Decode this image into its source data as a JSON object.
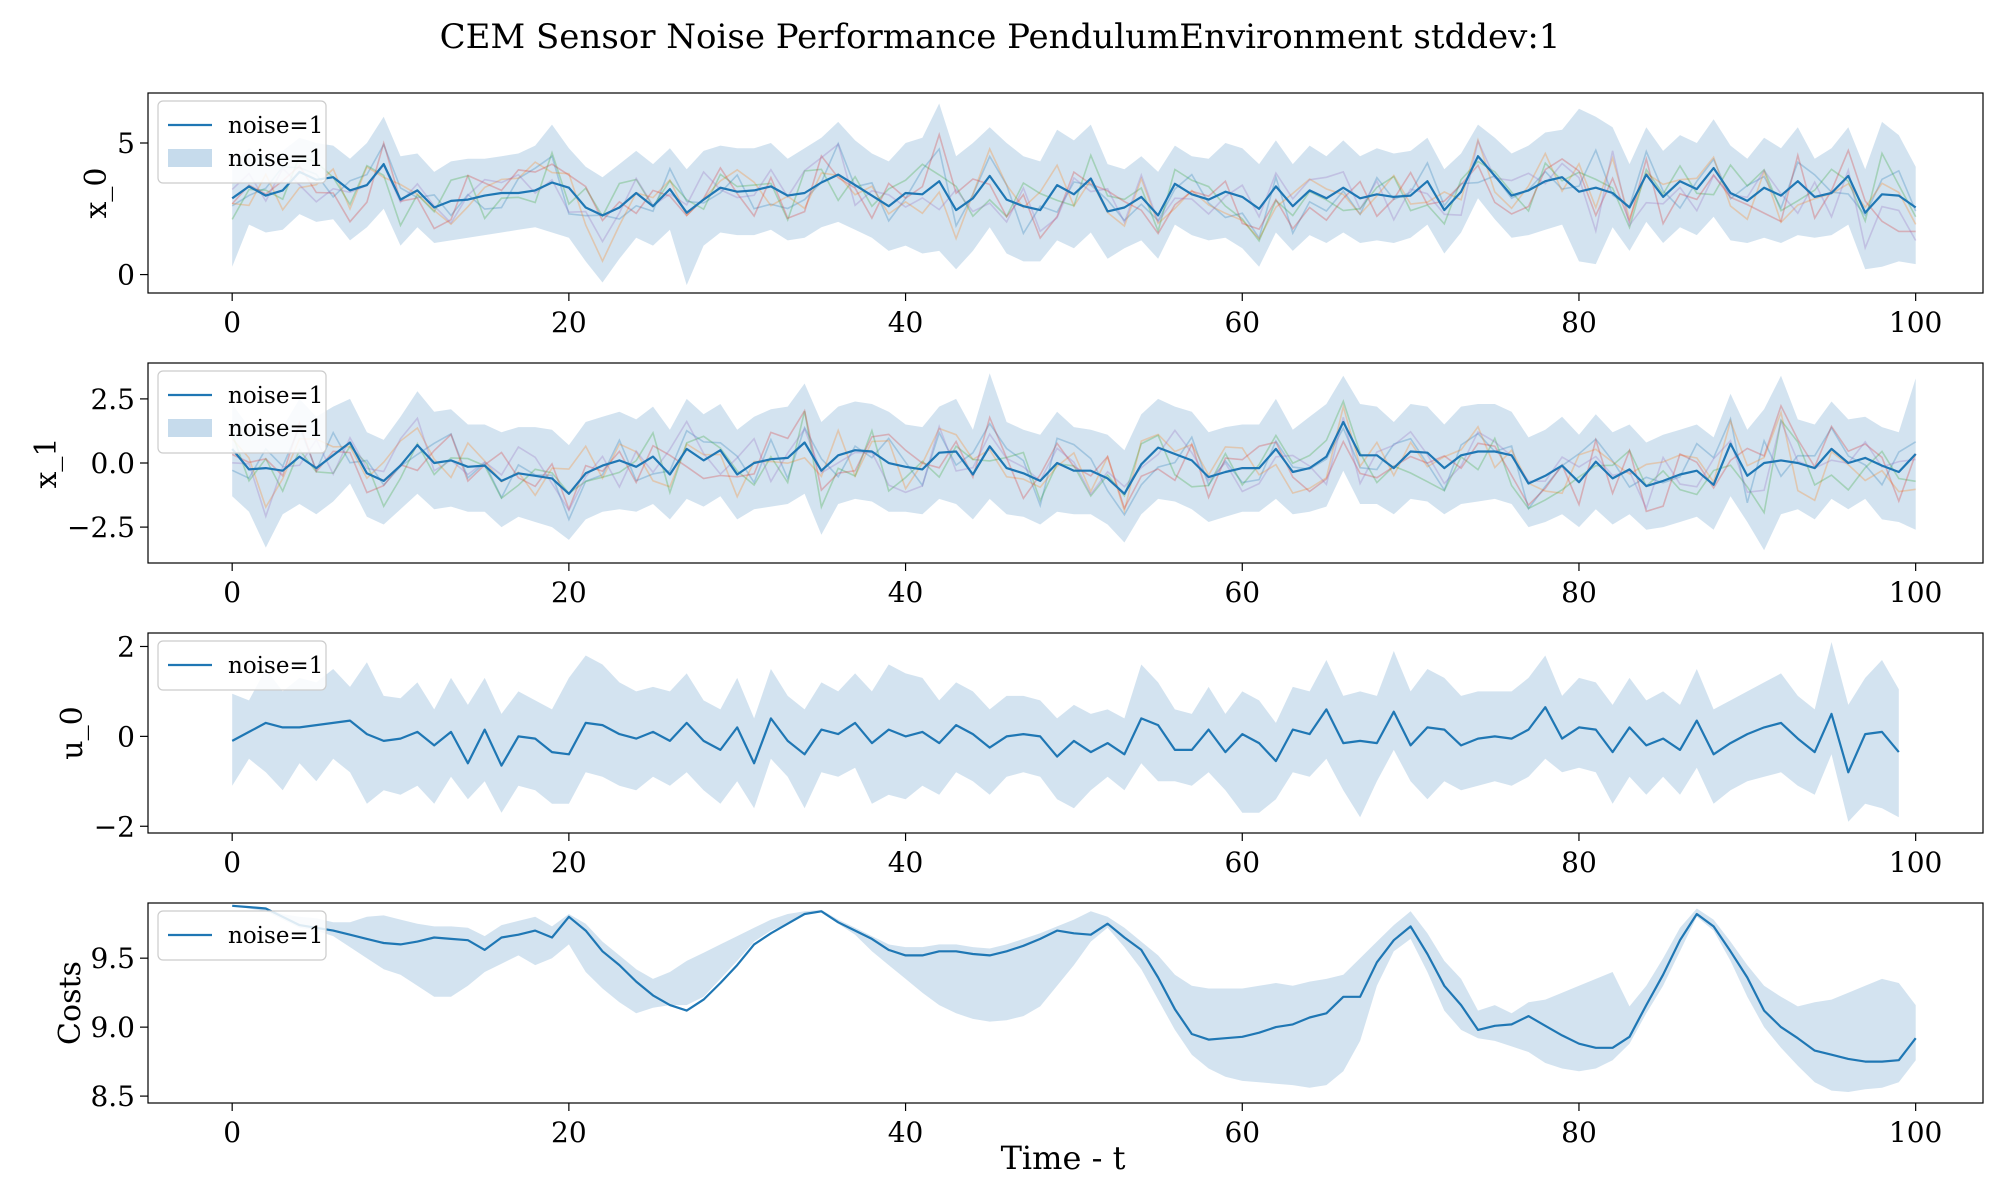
{
  "figure_title": "CEM Sensor Noise Performance PendulumEnvironment stddev:1",
  "colors": {
    "line": "#1f77b4",
    "band": "#aecce4",
    "samples": [
      "#1f77b4",
      "#ff7f0e",
      "#2ca02c",
      "#d62728",
      "#9467bd"
    ]
  },
  "chart_data": [
    {
      "type": "line",
      "ylabel": "x_0",
      "xlabel": "",
      "xlim": [
        -5,
        104
      ],
      "ylim": [
        -0.7,
        6.9
      ],
      "xticks": [
        0,
        20,
        40,
        60,
        80,
        100
      ],
      "xtick_labels": [
        "0",
        "20",
        "40",
        "60",
        "80",
        "100"
      ],
      "yticks": [
        0,
        5
      ],
      "ytick_labels": [
        "0",
        "5"
      ],
      "legend": {
        "position": "top-left",
        "entries": [
          {
            "kind": "line",
            "label": "noise=1"
          },
          {
            "kind": "band",
            "label": "noise=1"
          }
        ]
      },
      "mean": [
        2.9,
        3.35,
        3.0,
        3.2,
        3.9,
        3.6,
        3.7,
        3.2,
        3.4,
        4.2,
        2.85,
        3.2,
        2.55,
        2.8,
        2.85,
        3.0,
        3.1,
        3.1,
        3.2,
        3.5,
        3.3,
        2.55,
        2.25,
        2.55,
        3.1,
        2.6,
        3.25,
        2.35,
        2.85,
        3.3,
        3.15,
        3.2,
        3.35,
        3.0,
        3.1,
        3.5,
        3.8,
        3.4,
        3.0,
        2.6,
        3.1,
        3.05,
        3.55,
        2.45,
        2.9,
        3.75,
        2.85,
        2.6,
        2.45,
        3.4,
        3.05,
        3.65,
        2.4,
        2.55,
        2.95,
        2.25,
        3.45,
        3.05,
        2.85,
        3.15,
        2.95,
        2.5,
        3.35,
        2.6,
        3.2,
        2.9,
        3.3,
        2.9,
        3.05,
        2.95,
        3.0,
        3.55,
        2.45,
        3.15,
        4.5,
        3.75,
        3.0,
        3.2,
        3.55,
        3.7,
        3.15,
        3.3,
        3.1,
        2.55,
        3.8,
        2.95,
        3.55,
        3.25,
        4.05,
        3.1,
        2.8,
        3.3,
        3.0,
        3.55,
        2.95,
        3.1,
        3.75,
        2.35,
        3.05,
        3.0,
        2.55
      ],
      "upper": [
        4.2,
        4.8,
        4.5,
        4.7,
        5.2,
        5.0,
        4.9,
        4.4,
        5.0,
        6.0,
        4.5,
        4.6,
        3.9,
        4.3,
        4.4,
        4.4,
        4.5,
        4.6,
        4.9,
        5.7,
        4.8,
        4.1,
        3.7,
        4.2,
        4.7,
        4.2,
        4.8,
        4.0,
        4.7,
        4.9,
        4.8,
        4.8,
        5.0,
        4.4,
        4.8,
        5.2,
        5.8,
        5.1,
        4.6,
        4.3,
        5.0,
        5.2,
        6.5,
        4.5,
        5.0,
        5.6,
        5.0,
        4.5,
        4.3,
        5.5,
        5.1,
        5.7,
        4.2,
        4.0,
        4.5,
        3.9,
        4.9,
        4.5,
        4.4,
        5.0,
        4.8,
        4.2,
        5.1,
        4.2,
        4.9,
        4.5,
        5.1,
        4.5,
        4.8,
        4.6,
        4.7,
        5.2,
        4.0,
        4.6,
        5.7,
        5.2,
        4.6,
        4.9,
        5.4,
        5.5,
        6.3,
        6.0,
        5.6,
        4.2,
        5.6,
        4.7,
        5.3,
        5.0,
        5.9,
        4.9,
        4.4,
        5.2,
        4.8,
        5.6,
        4.4,
        4.8,
        5.6,
        4.0,
        5.8,
        5.3,
        4.1
      ],
      "lower": [
        0.3,
        1.9,
        1.6,
        1.7,
        2.3,
        2.0,
        2.1,
        1.3,
        1.8,
        2.5,
        1.1,
        1.8,
        1.2,
        1.3,
        1.4,
        1.5,
        1.6,
        1.7,
        1.8,
        1.6,
        1.4,
        0.5,
        -0.3,
        0.6,
        1.4,
        1.1,
        1.7,
        -0.4,
        1.1,
        1.6,
        1.5,
        1.5,
        1.7,
        1.3,
        1.4,
        1.8,
        2.0,
        1.7,
        1.4,
        0.9,
        1.1,
        0.8,
        0.9,
        0.2,
        0.9,
        1.8,
        0.8,
        0.5,
        0.5,
        1.3,
        1.0,
        1.6,
        0.6,
        1.0,
        1.3,
        0.6,
        1.9,
        1.5,
        1.3,
        1.4,
        1.0,
        0.3,
        1.6,
        0.9,
        1.5,
        1.2,
        1.6,
        1.2,
        1.3,
        1.2,
        1.4,
        1.9,
        0.8,
        1.6,
        2.9,
        2.1,
        1.4,
        1.5,
        1.7,
        1.9,
        0.5,
        0.4,
        1.8,
        0.9,
        2.0,
        1.2,
        1.8,
        1.5,
        2.2,
        1.3,
        1.2,
        1.4,
        1.2,
        1.5,
        1.4,
        1.5,
        1.9,
        0.2,
        0.3,
        0.5,
        0.4
      ]
    },
    {
      "type": "line",
      "ylabel": "x_1",
      "xlabel": "",
      "xlim": [
        -5,
        104
      ],
      "ylim": [
        -3.9,
        3.9
      ],
      "xticks": [
        0,
        20,
        40,
        60,
        80,
        100
      ],
      "xtick_labels": [
        "0",
        "20",
        "40",
        "60",
        "80",
        "100"
      ],
      "yticks": [
        2.5,
        0,
        -2.5
      ],
      "ytick_labels": [
        "2.5",
        "0.0",
        "−2.5"
      ],
      "legend": {
        "position": "top-left",
        "entries": [
          {
            "kind": "line",
            "label": "noise=1"
          },
          {
            "kind": "band",
            "label": "noise=1"
          }
        ]
      },
      "mean": [
        0.55,
        -0.25,
        -0.2,
        -0.3,
        0.25,
        -0.2,
        0.3,
        0.8,
        -0.4,
        -0.7,
        -0.1,
        0.7,
        0.0,
        0.1,
        -0.15,
        -0.1,
        -0.7,
        -0.4,
        -0.5,
        -0.6,
        -1.2,
        -0.4,
        -0.1,
        0.1,
        -0.15,
        0.25,
        -0.45,
        0.55,
        0.1,
        0.5,
        -0.45,
        0.0,
        0.15,
        0.2,
        0.8,
        -0.3,
        0.3,
        0.5,
        0.45,
        0.0,
        -0.15,
        -0.25,
        0.4,
        0.45,
        -0.45,
        0.65,
        -0.2,
        -0.4,
        -0.7,
        0.0,
        -0.3,
        -0.3,
        -0.6,
        -1.2,
        -0.05,
        0.6,
        0.35,
        0.1,
        -0.55,
        -0.35,
        -0.2,
        -0.2,
        0.55,
        -0.35,
        -0.2,
        0.25,
        1.6,
        0.3,
        0.3,
        -0.2,
        0.45,
        0.4,
        -0.2,
        0.3,
        0.45,
        0.45,
        0.3,
        -0.8,
        -0.5,
        -0.1,
        -0.75,
        0.05,
        -0.6,
        -0.25,
        -0.9,
        -0.7,
        -0.45,
        -0.3,
        -0.85,
        0.75,
        -0.5,
        0.0,
        0.1,
        0.0,
        -0.2,
        0.55,
        0.0,
        0.2,
        -0.1,
        -0.35,
        0.35
      ],
      "upper": [
        2.3,
        1.4,
        1.6,
        1.4,
        2.5,
        1.8,
        2.2,
        2.5,
        1.2,
        0.9,
        1.8,
        2.8,
        2.0,
        2.1,
        1.5,
        1.5,
        1.2,
        1.4,
        1.4,
        1.3,
        0.7,
        1.6,
        1.8,
        2.0,
        1.7,
        2.2,
        1.3,
        2.5,
        1.9,
        2.3,
        1.3,
        1.8,
        2.1,
        2.2,
        3.1,
        1.6,
        2.2,
        2.4,
        2.3,
        2.0,
        1.5,
        1.4,
        2.2,
        2.5,
        1.3,
        3.5,
        1.6,
        1.3,
        1.1,
        2.0,
        1.4,
        1.3,
        1.1,
        0.5,
        1.9,
        2.5,
        2.2,
        2.0,
        1.2,
        1.4,
        1.5,
        1.5,
        2.5,
        1.3,
        1.8,
        2.3,
        3.4,
        2.3,
        2.2,
        1.6,
        2.3,
        2.2,
        1.5,
        2.2,
        2.3,
        2.3,
        2.0,
        1.0,
        1.3,
        1.8,
        1.1,
        1.9,
        1.2,
        1.5,
        0.8,
        1.1,
        1.3,
        1.5,
        1.0,
        2.7,
        1.3,
        2.1,
        3.4,
        1.7,
        1.5,
        2.4,
        1.7,
        1.8,
        1.4,
        1.2,
        3.3
      ],
      "lower": [
        -1.3,
        -1.9,
        -3.3,
        -2.0,
        -1.6,
        -2.0,
        -1.5,
        -0.8,
        -2.1,
        -2.4,
        -1.8,
        -1.2,
        -1.8,
        -1.7,
        -1.9,
        -1.9,
        -2.5,
        -2.1,
        -2.3,
        -2.5,
        -3.0,
        -2.2,
        -1.9,
        -1.8,
        -1.9,
        -1.6,
        -2.2,
        -1.4,
        -1.7,
        -1.3,
        -2.2,
        -1.8,
        -1.7,
        -1.6,
        -1.2,
        -2.8,
        -1.6,
        -1.4,
        -1.5,
        -1.9,
        -1.9,
        -2.0,
        -1.4,
        -1.6,
        -2.2,
        -1.4,
        -2.0,
        -2.1,
        -2.4,
        -1.9,
        -2.0,
        -2.0,
        -2.4,
        -3.1,
        -2.0,
        -1.4,
        -1.5,
        -1.8,
        -2.3,
        -2.1,
        -1.9,
        -1.9,
        -1.4,
        -2.0,
        -1.9,
        -1.7,
        -0.3,
        -1.6,
        -1.6,
        -2.0,
        -1.4,
        -1.5,
        -2.0,
        -1.6,
        -1.5,
        -1.4,
        -1.6,
        -2.5,
        -2.3,
        -2.0,
        -2.5,
        -1.8,
        -2.4,
        -2.0,
        -2.6,
        -2.5,
        -2.3,
        -2.1,
        -2.6,
        -1.3,
        -2.3,
        -3.4,
        -2.0,
        -1.8,
        -2.2,
        -1.4,
        -1.8,
        -1.4,
        -2.2,
        -2.3,
        -2.6
      ]
    },
    {
      "type": "line",
      "ylabel": "u_0",
      "xlabel": "",
      "xlim": [
        -5,
        104
      ],
      "ylim": [
        -2.15,
        2.3
      ],
      "xticks": [
        0,
        20,
        40,
        60,
        80,
        100
      ],
      "xtick_labels": [
        "0",
        "20",
        "40",
        "60",
        "80",
        "100"
      ],
      "yticks": [
        2,
        0,
        -2
      ],
      "ytick_labels": [
        "2",
        "0",
        "−2"
      ],
      "legend": {
        "position": "top-left",
        "entries": [
          {
            "kind": "line",
            "label": "noise=1"
          }
        ]
      },
      "mean": [
        -0.1,
        0.1,
        0.3,
        0.2,
        0.2,
        0.25,
        0.3,
        0.35,
        0.05,
        -0.1,
        -0.05,
        0.1,
        -0.2,
        0.1,
        -0.6,
        0.15,
        -0.65,
        0.0,
        -0.05,
        -0.35,
        -0.4,
        0.3,
        0.25,
        0.05,
        -0.05,
        0.1,
        -0.1,
        0.3,
        -0.1,
        -0.3,
        0.2,
        -0.6,
        0.4,
        -0.1,
        -0.4,
        0.15,
        0.05,
        0.3,
        -0.15,
        0.15,
        0.0,
        0.1,
        -0.15,
        0.25,
        0.05,
        -0.25,
        0.0,
        0.05,
        0.0,
        -0.45,
        -0.1,
        -0.35,
        -0.15,
        -0.4,
        0.4,
        0.25,
        -0.3,
        -0.3,
        0.15,
        -0.35,
        0.05,
        -0.15,
        -0.55,
        0.15,
        0.05,
        0.6,
        -0.15,
        -0.1,
        -0.15,
        0.55,
        -0.2,
        0.2,
        0.15,
        -0.2,
        -0.05,
        0.0,
        -0.05,
        0.15,
        0.65,
        -0.05,
        0.2,
        0.15,
        -0.35,
        0.2,
        -0.2,
        -0.05,
        -0.3,
        0.35,
        -0.4,
        -0.15,
        0.05,
        0.2,
        0.3,
        -0.05,
        -0.35,
        0.5,
        -0.8,
        0.05,
        0.1,
        -0.35
      ],
      "upper": [
        0.95,
        0.8,
        1.5,
        1.0,
        1.3,
        1.2,
        1.5,
        1.1,
        1.65,
        0.9,
        0.85,
        1.2,
        0.6,
        1.3,
        0.7,
        1.3,
        0.5,
        1.0,
        0.8,
        0.6,
        1.3,
        1.8,
        1.6,
        1.2,
        1.0,
        1.1,
        1.0,
        1.4,
        0.8,
        0.6,
        1.3,
        0.4,
        1.5,
        0.9,
        0.6,
        1.2,
        1.0,
        1.4,
        1.0,
        1.6,
        1.4,
        1.3,
        0.8,
        1.2,
        1.0,
        0.6,
        0.9,
        0.9,
        0.8,
        0.4,
        0.7,
        0.5,
        0.6,
        0.4,
        1.6,
        1.2,
        0.6,
        0.5,
        1.1,
        0.5,
        1.0,
        0.8,
        0.3,
        1.1,
        1.0,
        1.7,
        0.9,
        1.0,
        0.9,
        1.9,
        1.0,
        1.5,
        1.3,
        0.9,
        1.0,
        1.0,
        1.0,
        1.3,
        1.8,
        0.9,
        1.3,
        1.2,
        0.7,
        1.3,
        0.8,
        1.0,
        0.7,
        1.5,
        0.6,
        0.8,
        1.0,
        1.2,
        1.4,
        0.9,
        0.6,
        2.1,
        0.7,
        1.3,
        1.7,
        1.05
      ],
      "lower": [
        -1.1,
        -0.5,
        -0.8,
        -1.2,
        -0.6,
        -1.0,
        -0.5,
        -0.8,
        -1.5,
        -1.2,
        -1.3,
        -1.1,
        -1.5,
        -0.9,
        -1.4,
        -1.0,
        -1.7,
        -1.1,
        -1.2,
        -1.5,
        -1.5,
        -0.8,
        -0.9,
        -1.1,
        -1.2,
        -0.9,
        -1.1,
        -0.8,
        -1.2,
        -1.5,
        -1.0,
        -1.6,
        -0.5,
        -0.9,
        -1.6,
        -0.8,
        -0.9,
        -0.7,
        -1.5,
        -1.3,
        -1.4,
        -1.1,
        -1.3,
        -0.8,
        -1.0,
        -1.3,
        -0.9,
        -0.8,
        -0.9,
        -1.4,
        -1.6,
        -1.2,
        -0.9,
        -1.2,
        -0.6,
        -1.0,
        -1.0,
        -1.1,
        -0.8,
        -1.2,
        -1.7,
        -1.7,
        -1.4,
        -0.8,
        -0.9,
        -0.5,
        -1.2,
        -1.8,
        -1.0,
        -0.3,
        -1.0,
        -1.4,
        -1.0,
        -1.2,
        -1.1,
        -1.0,
        -1.1,
        -0.9,
        -0.5,
        -0.8,
        -0.7,
        -0.8,
        -1.5,
        -0.9,
        -1.3,
        -0.9,
        -1.3,
        -0.7,
        -1.5,
        -1.2,
        -1.0,
        -0.9,
        -0.8,
        -1.1,
        -1.3,
        -0.4,
        -1.9,
        -1.5,
        -1.6,
        -1.8
      ]
    },
    {
      "type": "line",
      "ylabel": "Costs",
      "xlabel": "Time - t",
      "xlim": [
        -5,
        104
      ],
      "ylim": [
        8.45,
        9.9
      ],
      "xticks": [
        0,
        20,
        40,
        60,
        80,
        100
      ],
      "xtick_labels": [
        "0",
        "20",
        "40",
        "60",
        "80",
        "100"
      ],
      "yticks": [
        8.5,
        9.0,
        9.5
      ],
      "ytick_labels": [
        "8.5",
        "9.0",
        "9.5"
      ],
      "legend": {
        "position": "top-left",
        "entries": [
          {
            "kind": "line",
            "label": "noise=1"
          }
        ]
      },
      "mean": [
        9.88,
        9.87,
        9.86,
        9.8,
        9.74,
        9.72,
        9.7,
        9.67,
        9.64,
        9.61,
        9.6,
        9.62,
        9.65,
        9.64,
        9.63,
        9.56,
        9.65,
        9.67,
        9.7,
        9.65,
        9.8,
        9.7,
        9.55,
        9.45,
        9.33,
        9.23,
        9.16,
        9.12,
        9.2,
        9.32,
        9.45,
        9.6,
        9.68,
        9.75,
        9.82,
        9.84,
        9.76,
        9.7,
        9.64,
        9.56,
        9.52,
        9.52,
        9.55,
        9.55,
        9.53,
        9.52,
        9.55,
        9.59,
        9.64,
        9.7,
        9.68,
        9.67,
        9.75,
        9.65,
        9.56,
        9.36,
        9.13,
        8.95,
        8.91,
        8.92,
        8.93,
        8.96,
        9.0,
        9.02,
        9.07,
        9.1,
        9.22,
        9.22,
        9.47,
        9.63,
        9.73,
        9.53,
        9.3,
        9.16,
        8.98,
        9.01,
        9.02,
        9.08,
        9.01,
        8.94,
        8.88,
        8.85,
        8.85,
        8.93,
        9.16,
        9.38,
        9.63,
        9.82,
        9.73,
        9.55,
        9.36,
        9.12,
        9.0,
        8.92,
        8.83,
        8.8,
        8.77,
        8.75,
        8.75,
        8.76,
        8.92
      ],
      "upper": [
        9.88,
        9.87,
        9.86,
        9.82,
        9.8,
        9.79,
        9.76,
        9.76,
        9.8,
        9.81,
        9.78,
        9.75,
        9.73,
        9.73,
        9.72,
        9.66,
        9.74,
        9.77,
        9.8,
        9.73,
        9.82,
        9.75,
        9.62,
        9.52,
        9.42,
        9.35,
        9.4,
        9.48,
        9.54,
        9.6,
        9.66,
        9.72,
        9.78,
        9.82,
        9.84,
        9.85,
        9.78,
        9.72,
        9.66,
        9.6,
        9.58,
        9.58,
        9.6,
        9.6,
        9.58,
        9.57,
        9.6,
        9.64,
        9.68,
        9.73,
        9.78,
        9.84,
        9.8,
        9.72,
        9.62,
        9.52,
        9.38,
        9.3,
        9.28,
        9.28,
        9.28,
        9.3,
        9.32,
        9.3,
        9.33,
        9.35,
        9.38,
        9.5,
        9.62,
        9.74,
        9.84,
        9.68,
        9.48,
        9.35,
        9.12,
        9.16,
        9.1,
        9.18,
        9.2,
        9.25,
        9.3,
        9.35,
        9.4,
        9.15,
        9.3,
        9.5,
        9.72,
        9.86,
        9.78,
        9.62,
        9.45,
        9.3,
        9.22,
        9.15,
        9.18,
        9.2,
        9.25,
        9.3,
        9.35,
        9.32,
        9.16
      ],
      "lower": [
        9.88,
        9.86,
        9.84,
        9.78,
        9.72,
        9.7,
        9.66,
        9.58,
        9.5,
        9.42,
        9.38,
        9.3,
        9.22,
        9.22,
        9.3,
        9.4,
        9.46,
        9.52,
        9.45,
        9.5,
        9.6,
        9.4,
        9.28,
        9.18,
        9.1,
        9.14,
        9.16,
        9.16,
        9.22,
        9.35,
        9.48,
        9.62,
        9.7,
        9.75,
        9.82,
        9.84,
        9.75,
        9.67,
        9.55,
        9.45,
        9.35,
        9.25,
        9.16,
        9.1,
        9.06,
        9.04,
        9.05,
        9.08,
        9.15,
        9.3,
        9.45,
        9.62,
        9.72,
        9.58,
        9.42,
        9.2,
        8.98,
        8.8,
        8.7,
        8.64,
        8.61,
        8.6,
        8.59,
        8.58,
        8.56,
        8.58,
        8.68,
        8.9,
        9.3,
        9.55,
        9.64,
        9.4,
        9.12,
        8.98,
        8.92,
        8.9,
        8.86,
        8.82,
        8.74,
        8.7,
        8.68,
        8.7,
        8.76,
        8.88,
        9.1,
        9.3,
        9.55,
        9.8,
        9.7,
        9.48,
        9.22,
        9.0,
        8.85,
        8.72,
        8.6,
        8.54,
        8.53,
        8.55,
        8.56,
        8.6,
        8.76
      ]
    }
  ]
}
